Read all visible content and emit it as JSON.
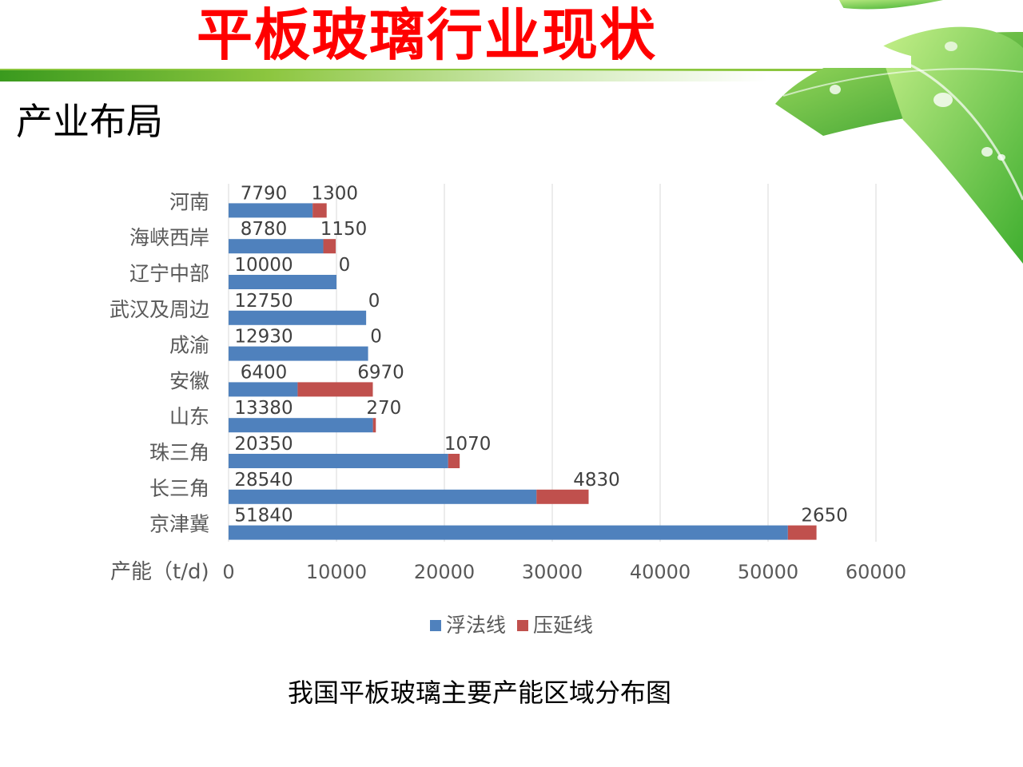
{
  "slide": {
    "title": "平板玻璃行业现状",
    "section": "产业布局",
    "caption": "我国平板玻璃主要产能区域分布图"
  },
  "colors": {
    "float": "#4f81bd",
    "rolled": "#c0504d",
    "title": "#ff0000",
    "accent_green": "#8cc63f"
  },
  "chart_data": {
    "type": "bar",
    "orientation": "horizontal",
    "stacked": true,
    "categories": [
      "河南",
      "海峡西岸",
      "辽宁中部",
      "武汉及周边",
      "成渝",
      "安徽",
      "山东",
      "珠三角",
      "长三角",
      "京津冀"
    ],
    "series": [
      {
        "name": "浮法线",
        "values": [
          7790,
          8780,
          10000,
          12750,
          12930,
          6400,
          13380,
          20350,
          28540,
          51840
        ]
      },
      {
        "name": "压延线",
        "values": [
          1300,
          1150,
          0,
          0,
          0,
          6970,
          270,
          1070,
          4830,
          2650
        ]
      }
    ],
    "xlabel": "产能（t/d)",
    "xlim": [
      0,
      60000
    ],
    "xticks": [
      "0",
      "10000",
      "20000",
      "30000",
      "40000",
      "50000",
      "60000"
    ],
    "grid": true,
    "legend_position": "bottom"
  }
}
